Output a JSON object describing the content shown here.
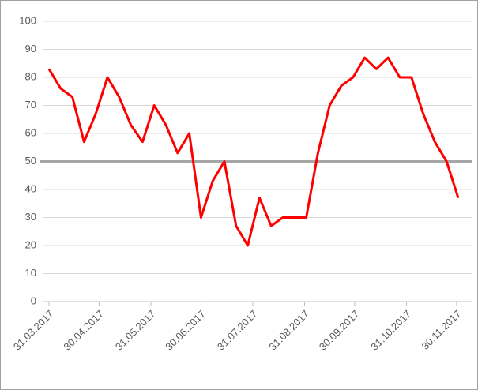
{
  "chart_data": {
    "type": "line",
    "x": [
      "31.03.2017",
      "07.04.2017",
      "14.04.2017",
      "21.04.2017",
      "28.04.2017",
      "05.05.2017",
      "12.05.2017",
      "19.05.2017",
      "26.05.2017",
      "02.06.2017",
      "09.06.2017",
      "16.06.2017",
      "23.06.2017",
      "30.06.2017",
      "07.07.2017",
      "14.07.2017",
      "21.07.2017",
      "28.07.2017",
      "04.08.2017",
      "11.08.2017",
      "18.08.2017",
      "25.08.2017",
      "01.09.2017",
      "08.09.2017",
      "15.09.2017",
      "22.09.2017",
      "29.09.2017",
      "06.10.2017",
      "13.10.2017",
      "20.10.2017",
      "27.10.2017",
      "03.11.2017",
      "10.11.2017",
      "17.11.2017",
      "24.11.2017",
      "01.12.2017"
    ],
    "values": [
      83,
      76,
      73,
      57,
      67,
      80,
      73,
      63,
      57,
      70,
      63,
      53,
      60,
      30,
      43,
      50,
      27,
      20,
      37,
      27,
      30,
      30,
      30,
      53,
      70,
      77,
      80,
      87,
      83,
      87,
      80,
      80,
      67,
      57,
      50,
      37
    ],
    "color": "#ff0000",
    "reference_line": {
      "value": 50,
      "color": "#a6a6a6"
    },
    "xlim": [
      "31.03.2017",
      "01.12.2017"
    ],
    "xticks": [
      "31.03.2017",
      "30.04.2017",
      "31.05.2017",
      "30.06.2017",
      "31.07.2017",
      "31.08.2017",
      "30.09.2017",
      "31.10.2017",
      "30.11.2017"
    ],
    "ylim": [
      0,
      100
    ],
    "yticks": [
      0,
      10,
      20,
      30,
      40,
      50,
      60,
      70,
      80,
      90,
      100
    ],
    "grid": true
  }
}
